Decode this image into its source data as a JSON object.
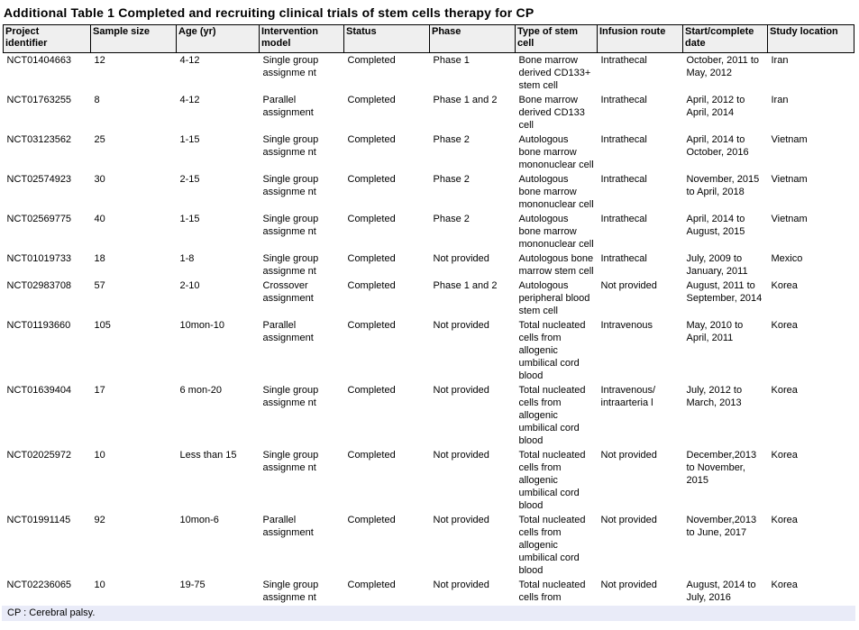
{
  "title": "Additional Table 1 Completed and recruiting clinical trials of stem cells therapy for CP",
  "footnote": "CP : Cerebral palsy.",
  "colors": {
    "header_bg": "#efefef",
    "border": "#000000",
    "footnote_bg": "#e9ebf8",
    "text": "#000000"
  },
  "table": {
    "columns": [
      "Project\nidentifier",
      "Sample size",
      "Age (yr)",
      "Intervention\nmodel",
      "Status",
      "Phase",
      "Type of stem\ncell",
      "Infusion route",
      "Start/complete\ndate",
      "Study location"
    ],
    "rows": [
      [
        "NCT01404663",
        "12",
        "4-12",
        "Single group\nassignme nt",
        "Completed",
        "Phase 1",
        "Bone marrow\nderived CD133+\nstem cell",
        "Intrathecal",
        "October, 2011 to\nMay, 2012",
        "Iran"
      ],
      [
        "NCT01763255",
        "8",
        "4-12",
        "Parallel\nassignment",
        "Completed",
        "Phase 1 and 2",
        "Bone marrow\nderived CD133\ncell",
        "Intrathecal",
        "April, 2012 to\nApril, 2014",
        "Iran"
      ],
      [
        "NCT03123562",
        "25",
        "1-15",
        "Single group\nassignme nt",
        "Completed",
        "Phase 2",
        "Autologous\nbone marrow\nmononuclear cell",
        "Intrathecal",
        "April, 2014 to\nOctober, 2016",
        "Vietnam"
      ],
      [
        "NCT02574923",
        "30",
        "2-15",
        "Single group\nassignme nt",
        "Completed",
        "Phase 2",
        "Autologous\nbone marrow\nmononuclear cell",
        "Intrathecal",
        "November, 2015\nto April, 2018",
        "Vietnam"
      ],
      [
        "NCT02569775",
        "40",
        "1-15",
        "Single group\nassignme nt",
        "Completed",
        "Phase 2",
        "Autologous\nbone marrow\nmononuclear cell",
        "Intrathecal",
        "April, 2014 to\nAugust, 2015",
        "Vietnam"
      ],
      [
        "NCT01019733",
        "18",
        "1-8",
        "Single group\nassignme nt",
        "Completed",
        "Not provided",
        "Autologous bone\nmarrow stem cell",
        "Intrathecal",
        "July, 2009 to\nJanuary, 2011",
        "Mexico"
      ],
      [
        "NCT02983708",
        "57",
        "2-10",
        "Crossover\nassignment",
        "Completed",
        "Phase 1 and 2",
        "Autologous\nperipheral blood\nstem cell",
        "Not provided",
        "August, 2011 to\nSeptember, 2014",
        "Korea"
      ],
      [
        "NCT01193660",
        "105",
        "10mon-10",
        "Parallel\nassignment",
        "Completed",
        "Not provided",
        "Total nucleated\ncells from\nallogenic\numbilical cord\nblood",
        "Intravenous",
        "May, 2010 to\nApril, 2011",
        "Korea"
      ],
      [
        "NCT01639404",
        "17",
        "6 mon-20",
        "Single group\nassignme nt",
        "Completed",
        "Not provided",
        "Total nucleated\ncells from\nallogenic\numbilical cord\nblood",
        "Intravenous/\nintraarteria l",
        "July, 2012 to\nMarch, 2013",
        "Korea"
      ],
      [
        "NCT02025972",
        "10",
        "Less than 15",
        "Single group\nassignme nt",
        "Completed",
        "Not provided",
        "Total nucleated\ncells from\nallogenic\numbilical cord\nblood",
        "Not provided",
        "December,2013\nto November,\n2015",
        "Korea"
      ],
      [
        "NCT01991145",
        "92",
        "10mon-6",
        "Parallel\nassignment",
        "Completed",
        "Not provided",
        "Total nucleated\ncells from\nallogenic\numbilical cord\nblood",
        "Not provided",
        "November,2013\nto June, 2017",
        "Korea"
      ],
      [
        "NCT02236065",
        "10",
        "19-75",
        "Single group\nassignme nt",
        "Completed",
        "Not provided",
        "Total nucleated\ncells from",
        "Not provided",
        "August, 2014 to\nJuly, 2016",
        "Korea"
      ]
    ]
  }
}
